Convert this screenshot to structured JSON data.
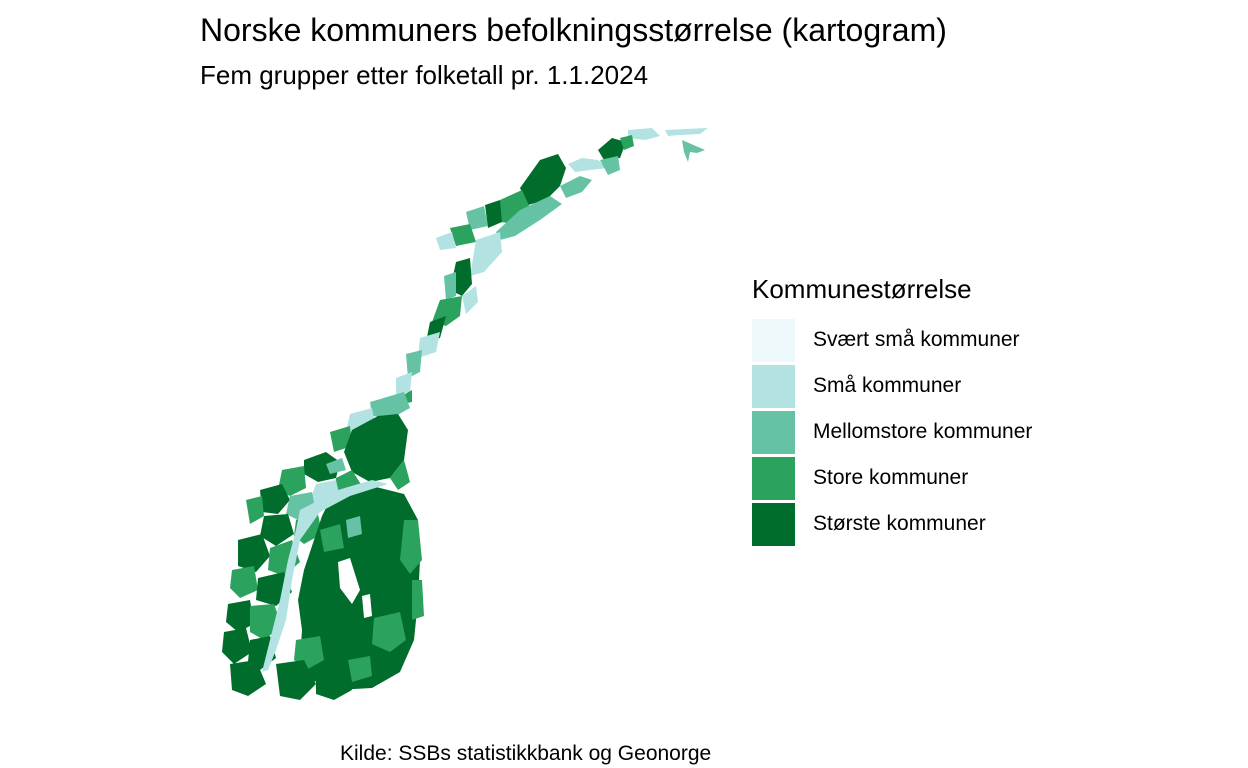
{
  "title": "Norske kommuners befolkningsstørrelse (kartogram)",
  "subtitle": "Fem grupper etter folketall pr. 1.1.2024",
  "legend": {
    "title": "Kommunestørrelse",
    "items": [
      {
        "label": "Svært små kommuner",
        "color": "#edf8fb"
      },
      {
        "label": "Små kommuner",
        "color": "#b2e2e2"
      },
      {
        "label": "Mellomstore kommuner",
        "color": "#66c2a4"
      },
      {
        "label": "Store kommuner",
        "color": "#2ca25f"
      },
      {
        "label": "Største kommuner",
        "color": "#006d2c"
      }
    ]
  },
  "caption": "Kilde: SSBs statistikkbank og Geonorge"
}
